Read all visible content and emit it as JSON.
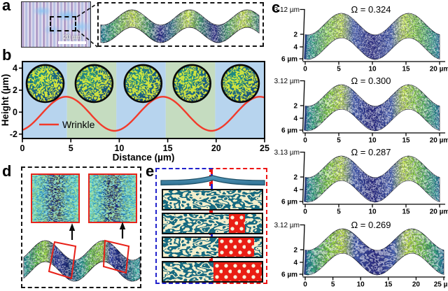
{
  "panels": {
    "a": {
      "label": "a",
      "micrograph_scale_bar": "20 µm"
    },
    "b": {
      "label": "b"
    },
    "c": {
      "label": "c"
    },
    "d": {
      "label": "d"
    },
    "e": {
      "label": "e"
    }
  },
  "chart_data": [
    {
      "panel": "b",
      "type": "line",
      "xlabel": "Distance (µm)",
      "ylabel": "Height (µm)",
      "xlim": [
        0,
        25
      ],
      "ylim": [
        -2.4,
        4.6
      ],
      "xticks": [
        0,
        5,
        10,
        15,
        20,
        25
      ],
      "yticks": [
        -2,
        0,
        2,
        4
      ],
      "grid": false,
      "legend": {
        "position": "lower-left",
        "entries": [
          {
            "label": "Wrinkle",
            "color": "#f23a2b"
          }
        ]
      },
      "series": [
        {
          "name": "Wrinkle",
          "color": "#f23a2b",
          "model": {
            "shape": "sinusoid",
            "amplitude_um": 1.55,
            "period_um": 10,
            "vertical_offset_um": -0.15,
            "rising_zero_crossing_um": 2
          },
          "x": [
            0,
            1,
            2,
            3,
            4,
            5,
            6,
            7,
            8,
            9,
            10,
            11,
            12,
            13,
            14,
            15,
            16,
            17,
            18,
            19,
            20,
            21,
            22,
            23,
            24,
            25
          ],
          "y": [
            -1.62,
            -1.06,
            -0.15,
            0.76,
            1.32,
            1.32,
            0.76,
            -0.15,
            -1.06,
            -1.62,
            -1.62,
            -1.06,
            -0.15,
            0.76,
            1.32,
            1.32,
            0.76,
            -0.15,
            -1.06,
            -1.62,
            -1.62,
            -1.06,
            -0.15,
            0.76,
            1.32,
            1.32
          ]
        }
      ],
      "background_bands": [
        {
          "x_from": 0,
          "x_to": 4.6,
          "color": "#b7d4ee"
        },
        {
          "x_from": 4.6,
          "x_to": 9.7,
          "color": "#c5dcc0"
        },
        {
          "x_from": 9.7,
          "x_to": 14.8,
          "color": "#b7d4ee"
        },
        {
          "x_from": 14.8,
          "x_to": 19.9,
          "color": "#c5dcc0"
        },
        {
          "x_from": 19.9,
          "x_to": 25,
          "color": "#b7d4ee"
        }
      ],
      "inset_circles": {
        "count": 5,
        "centers_x_um": [
          2.35,
          7.4,
          12.45,
          17.5,
          22.5
        ],
        "center_y_um": 2.6,
        "content": "AFM labyrinth wrinkle pattern insets"
      }
    },
    {
      "panel": "c",
      "type": "3d-surface",
      "subplots": [
        {
          "title": "Ω = 0.324",
          "omega": 0.324,
          "z_max_label": "3.12 µm",
          "depth_ticks": [
            "2",
            "4",
            "6 µm"
          ],
          "x_ticks": [
            "0",
            "5",
            "10",
            "15",
            "20 µm"
          ],
          "x_range_um": [
            0,
            20
          ],
          "texture": "fine"
        },
        {
          "title": "Ω = 0.300",
          "omega": 0.3,
          "z_max_label": "3.12 µm",
          "depth_ticks": [
            "2",
            "4",
            "6 µm"
          ],
          "x_ticks": [
            "0",
            "5",
            "10",
            "15",
            "20 µm"
          ],
          "x_range_um": [
            0,
            20
          ],
          "texture": "medium"
        },
        {
          "title": "Ω = 0.287",
          "omega": 0.287,
          "z_max_label": "3.13 µm",
          "depth_ticks": [
            "2",
            "4",
            "6 µm"
          ],
          "x_ticks": [
            "0",
            "5",
            "10",
            "15",
            "20 µm"
          ],
          "x_range_um": [
            0,
            20
          ],
          "texture": "medium"
        },
        {
          "title": "Ω = 0.269",
          "omega": 0.269,
          "z_max_label": "3.12 µm",
          "depth_ticks": [
            "2",
            "4",
            "6 µm"
          ],
          "x_ticks": [
            "0",
            "5",
            "10",
            "15",
            "20",
            "25 µm"
          ],
          "x_range_um": [
            0,
            25
          ],
          "texture": "coarse"
        }
      ]
    }
  ],
  "colors": {
    "wrinkle_line": "#f23a2b",
    "band_blue": "#b7d4ee",
    "band_green": "#c5dcc0",
    "dashed_outline": "#151515",
    "panel_e_blue_box": "#2222cc",
    "panel_e_red_box": "#ee1515",
    "panel_e_teal": "#176a80",
    "panel_e_cream": "#f3eecb",
    "panel_e_red_fill": "#ea1e14",
    "inset_border_red": "#e8251c"
  }
}
